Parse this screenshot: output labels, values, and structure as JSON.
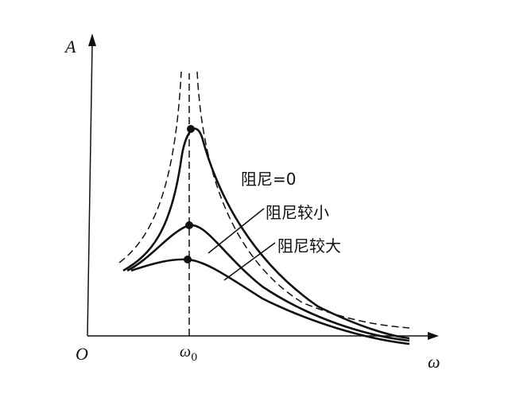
{
  "axes": {
    "y_label": "A",
    "x_label": "ω",
    "origin": "O",
    "omega0": {
      "symbol": "ω",
      "subscript": "0"
    }
  },
  "curves": {
    "zero_damping": "阻尼=0",
    "small_damping": "阻尼较小",
    "large_damping": "阻尼较大"
  }
}
